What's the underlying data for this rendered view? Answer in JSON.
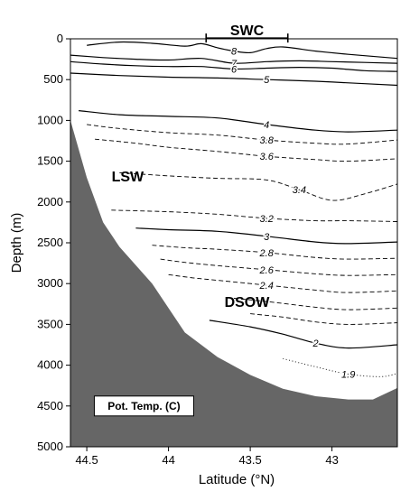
{
  "chart_data": {
    "type": "contour",
    "variable": "Pot. Temp. (C)",
    "xlabel": "Latitude (°N)",
    "ylabel": "Depth (m)",
    "xlim": [
      44.6,
      42.6
    ],
    "ylim": [
      5000,
      0
    ],
    "xticks": [
      44.5,
      44,
      43.5,
      43
    ],
    "yticks": [
      0,
      500,
      1000,
      1500,
      2000,
      2500,
      3000,
      3500,
      4000,
      4500,
      5000
    ],
    "grid": false,
    "bathymetry": [
      {
        "lat": 44.6,
        "depth": 1000
      },
      {
        "lat": 44.5,
        "depth": 1700
      },
      {
        "lat": 44.4,
        "depth": 2250
      },
      {
        "lat": 44.3,
        "depth": 2550
      },
      {
        "lat": 44.1,
        "depth": 3000
      },
      {
        "lat": 43.9,
        "depth": 3600
      },
      {
        "lat": 43.7,
        "depth": 3900
      },
      {
        "lat": 43.5,
        "depth": 4120
      },
      {
        "lat": 43.3,
        "depth": 4290
      },
      {
        "lat": 43.1,
        "depth": 4380
      },
      {
        "lat": 42.9,
        "depth": 4420
      },
      {
        "lat": 42.75,
        "depth": 4420
      },
      {
        "lat": 42.6,
        "depth": 4280
      }
    ],
    "contours": [
      {
        "level": "8",
        "style": "solid",
        "points": [
          [
            44.5,
            80
          ],
          [
            44.3,
            40
          ],
          [
            44.1,
            55
          ],
          [
            43.9,
            90
          ],
          [
            43.8,
            60
          ],
          [
            43.7,
            110
          ],
          [
            43.6,
            150
          ],
          [
            43.5,
            170
          ],
          [
            43.4,
            120
          ],
          [
            43.3,
            100
          ],
          [
            43.1,
            150
          ],
          [
            42.9,
            190
          ],
          [
            42.6,
            240
          ]
        ]
      },
      {
        "level": "7",
        "style": "solid",
        "points": [
          [
            44.6,
            200
          ],
          [
            44.4,
            230
          ],
          [
            44.2,
            250
          ],
          [
            44.0,
            260
          ],
          [
            43.8,
            240
          ],
          [
            43.6,
            300
          ],
          [
            43.4,
            280
          ],
          [
            43.2,
            270
          ],
          [
            43.0,
            280
          ],
          [
            42.8,
            290
          ],
          [
            42.6,
            300
          ]
        ]
      },
      {
        "level": "6",
        "style": "solid",
        "points": [
          [
            44.6,
            280
          ],
          [
            44.4,
            310
          ],
          [
            44.2,
            330
          ],
          [
            44.0,
            340
          ],
          [
            43.8,
            340
          ],
          [
            43.6,
            370
          ],
          [
            43.4,
            360
          ],
          [
            43.2,
            350
          ],
          [
            43.0,
            360
          ],
          [
            42.8,
            390
          ],
          [
            42.6,
            400
          ]
        ]
      },
      {
        "level": "5",
        "style": "solid",
        "points": [
          [
            44.6,
            420
          ],
          [
            44.3,
            450
          ],
          [
            44.0,
            470
          ],
          [
            43.7,
            480
          ],
          [
            43.4,
            500
          ],
          [
            43.1,
            520
          ],
          [
            42.8,
            550
          ],
          [
            42.6,
            570
          ]
        ]
      },
      {
        "level": "4",
        "style": "solid",
        "points": [
          [
            44.55,
            880
          ],
          [
            44.3,
            930
          ],
          [
            44.0,
            950
          ],
          [
            43.7,
            970
          ],
          [
            43.4,
            1050
          ],
          [
            43.1,
            1120
          ],
          [
            42.9,
            1140
          ],
          [
            42.6,
            1120
          ]
        ]
      },
      {
        "level": "3.8",
        "style": "dashed",
        "points": [
          [
            44.5,
            1050
          ],
          [
            44.3,
            1100
          ],
          [
            44.0,
            1150
          ],
          [
            43.7,
            1180
          ],
          [
            43.4,
            1240
          ],
          [
            43.1,
            1280
          ],
          [
            42.9,
            1290
          ],
          [
            42.6,
            1240
          ]
        ]
      },
      {
        "level": "3.6",
        "style": "dashed",
        "points": [
          [
            44.45,
            1230
          ],
          [
            44.2,
            1280
          ],
          [
            44.0,
            1330
          ],
          [
            43.7,
            1380
          ],
          [
            43.4,
            1440
          ],
          [
            43.1,
            1480
          ],
          [
            42.9,
            1500
          ],
          [
            42.6,
            1470
          ]
        ]
      },
      {
        "level": "3.4",
        "style": "dashed",
        "points": [
          [
            44.3,
            1640
          ],
          [
            44.0,
            1680
          ],
          [
            43.7,
            1710
          ],
          [
            43.4,
            1730
          ],
          [
            43.2,
            1850
          ],
          [
            43.0,
            1980
          ],
          [
            42.8,
            1900
          ],
          [
            42.6,
            1780
          ]
        ]
      },
      {
        "level": "3.2",
        "style": "dashed",
        "points": [
          [
            44.35,
            2100
          ],
          [
            44.0,
            2120
          ],
          [
            43.7,
            2150
          ],
          [
            43.4,
            2200
          ],
          [
            43.1,
            2230
          ],
          [
            42.9,
            2230
          ],
          [
            42.6,
            2240
          ]
        ]
      },
      {
        "level": "3",
        "style": "solid",
        "points": [
          [
            44.2,
            2320
          ],
          [
            44.0,
            2340
          ],
          [
            43.7,
            2360
          ],
          [
            43.4,
            2420
          ],
          [
            43.1,
            2490
          ],
          [
            42.9,
            2510
          ],
          [
            42.6,
            2490
          ]
        ]
      },
      {
        "level": "2.8",
        "style": "dashed",
        "points": [
          [
            44.1,
            2530
          ],
          [
            43.9,
            2560
          ],
          [
            43.7,
            2580
          ],
          [
            43.4,
            2620
          ],
          [
            43.1,
            2680
          ],
          [
            42.9,
            2700
          ],
          [
            42.6,
            2690
          ]
        ]
      },
      {
        "level": "2.6",
        "style": "dashed",
        "points": [
          [
            44.05,
            2700
          ],
          [
            43.9,
            2740
          ],
          [
            43.7,
            2780
          ],
          [
            43.4,
            2830
          ],
          [
            43.1,
            2880
          ],
          [
            42.9,
            2900
          ],
          [
            42.6,
            2890
          ]
        ]
      },
      {
        "level": "2.4",
        "style": "dashed",
        "points": [
          [
            44.0,
            2890
          ],
          [
            43.85,
            2930
          ],
          [
            43.7,
            2960
          ],
          [
            43.4,
            3020
          ],
          [
            43.1,
            3080
          ],
          [
            42.9,
            3110
          ],
          [
            42.6,
            3090
          ]
        ]
      },
      {
        "level": "",
        "style": "dashed",
        "points": [
          [
            43.6,
            3180
          ],
          [
            43.4,
            3220
          ],
          [
            43.1,
            3290
          ],
          [
            42.9,
            3320
          ],
          [
            42.6,
            3300
          ]
        ]
      },
      {
        "level": "",
        "style": "dashed",
        "points": [
          [
            43.5,
            3370
          ],
          [
            43.3,
            3410
          ],
          [
            43.1,
            3470
          ],
          [
            42.9,
            3500
          ],
          [
            42.6,
            3480
          ]
        ]
      },
      {
        "level": "2",
        "style": "solid",
        "points": [
          [
            43.75,
            3450
          ],
          [
            43.5,
            3530
          ],
          [
            43.3,
            3620
          ],
          [
            43.1,
            3730
          ],
          [
            42.9,
            3790
          ],
          [
            42.6,
            3750
          ]
        ]
      },
      {
        "level": "1.9",
        "style": "dotted",
        "points": [
          [
            43.3,
            3920
          ],
          [
            43.1,
            4020
          ],
          [
            42.9,
            4110
          ],
          [
            42.7,
            4140
          ],
          [
            42.6,
            4100
          ]
        ]
      }
    ],
    "annotations": [
      {
        "text": "SWC",
        "lat": 43.5,
        "depth": -120
      },
      {
        "text": "LSW",
        "lat": 44.25,
        "depth": 1680
      },
      {
        "text": "DSOW",
        "lat": 43.52,
        "depth": 3220
      },
      {
        "text": "Pot. Temp. (C)",
        "lat": 44.15,
        "depth": 4500
      }
    ],
    "swc_range": [
      43.77,
      43.27
    ],
    "colors": {
      "bathymetry": "#666666",
      "line": "#000000"
    }
  }
}
